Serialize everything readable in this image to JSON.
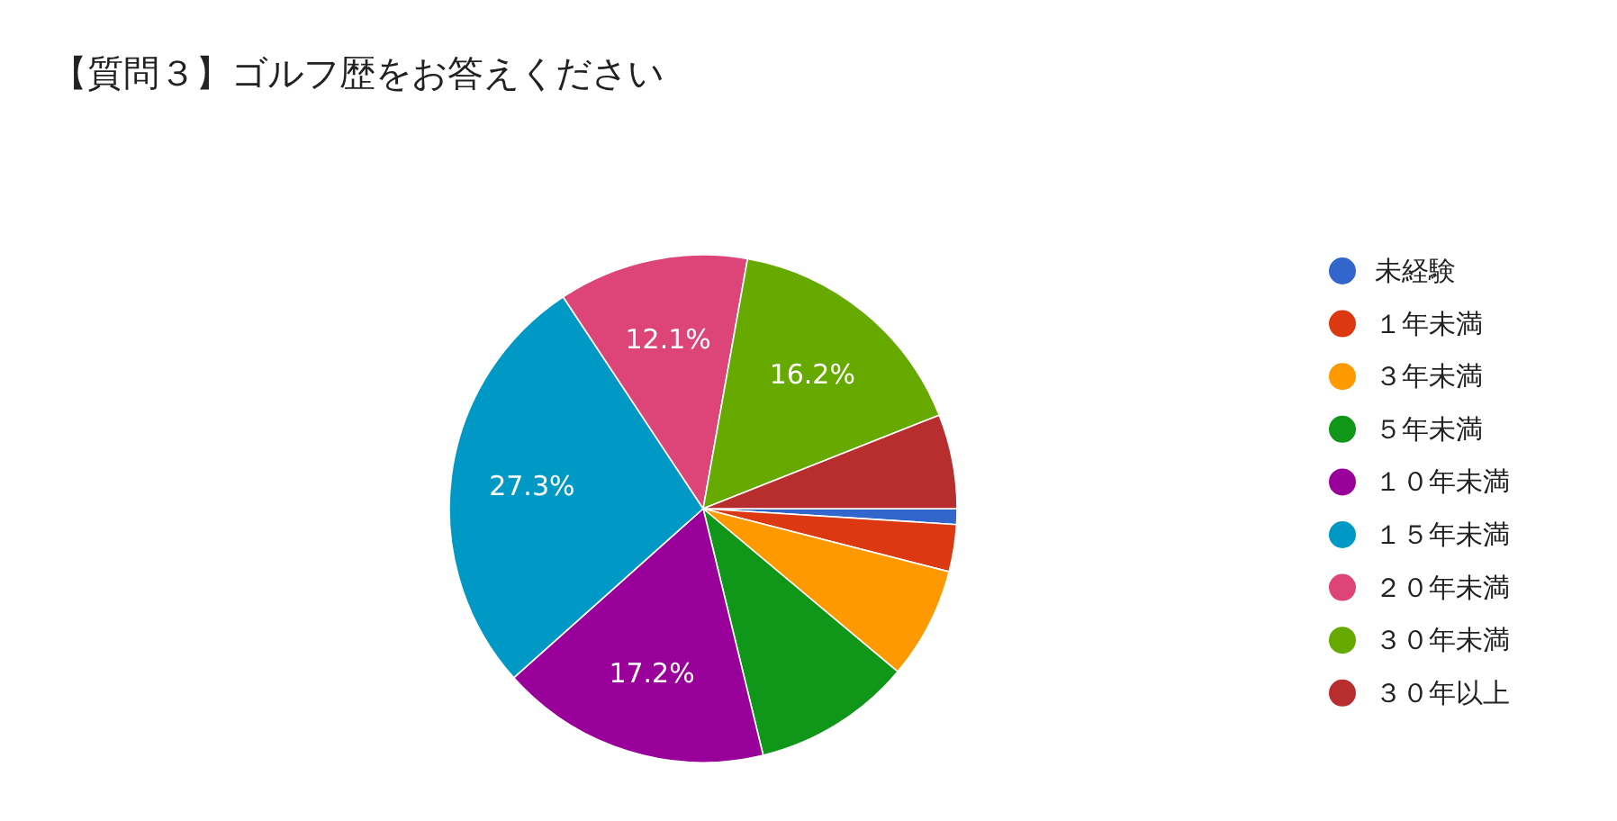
{
  "chart_data": {
    "type": "pie",
    "title": "【質問３】ゴルフ歴をお答えください",
    "categories": [
      "未経験",
      "１年未満",
      "３年未満",
      "５年未満",
      "１０年未満",
      "１５年未満",
      "２０年未満",
      "３０年未満",
      "３０年以上"
    ],
    "values": [
      1.0,
      3.0,
      7.1,
      10.1,
      17.2,
      27.3,
      12.1,
      16.2,
      6.0
    ],
    "value_labels": [
      null,
      null,
      null,
      null,
      "17.2%",
      "27.3%",
      "12.1%",
      "16.2%",
      null
    ],
    "colors": [
      "#3366cc",
      "#dc3912",
      "#ff9900",
      "#109618",
      "#990099",
      "#0099c6",
      "#dd4477",
      "#66aa00",
      "#b82e2e"
    ],
    "legend": "right"
  }
}
